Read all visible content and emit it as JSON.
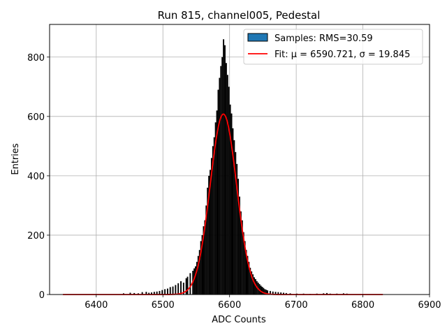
{
  "chart_data": {
    "type": "bar",
    "title": "Run 815, channel005, Pedestal",
    "xlabel": "ADC Counts",
    "ylabel": "Entries",
    "xlim": [
      6330,
      6900
    ],
    "ylim": [
      0,
      910
    ],
    "xticks": [
      "6400",
      "6500",
      "6600",
      "6700",
      "6800",
      "6900"
    ],
    "yticks": [
      "0",
      "200",
      "400",
      "600",
      "800"
    ],
    "grid": true,
    "legend_position": "top-right",
    "histogram": {
      "name": "Samples: RMS=30.59",
      "color": "#1f77b4",
      "bin_width": 2,
      "bins": [
        [
          6440,
          4
        ],
        [
          6450,
          6
        ],
        [
          6456,
          5
        ],
        [
          6462,
          4
        ],
        [
          6468,
          8
        ],
        [
          6474,
          9
        ],
        [
          6478,
          6
        ],
        [
          6482,
          7
        ],
        [
          6486,
          9
        ],
        [
          6490,
          10
        ],
        [
          6494,
          12
        ],
        [
          6498,
          15
        ],
        [
          6502,
          18
        ],
        [
          6506,
          20
        ],
        [
          6510,
          25
        ],
        [
          6514,
          27
        ],
        [
          6518,
          32
        ],
        [
          6522,
          38
        ],
        [
          6526,
          45
        ],
        [
          6530,
          40
        ],
        [
          6534,
          55
        ],
        [
          6536,
          60
        ],
        [
          6540,
          72
        ],
        [
          6544,
          80
        ],
        [
          6546,
          88
        ],
        [
          6548,
          95
        ],
        [
          6550,
          110
        ],
        [
          6552,
          130
        ],
        [
          6554,
          150
        ],
        [
          6556,
          180
        ],
        [
          6558,
          200
        ],
        [
          6560,
          230
        ],
        [
          6562,
          250
        ],
        [
          6564,
          300
        ],
        [
          6566,
          360
        ],
        [
          6568,
          400
        ],
        [
          6570,
          420
        ],
        [
          6572,
          460
        ],
        [
          6574,
          500
        ],
        [
          6576,
          530
        ],
        [
          6578,
          580
        ],
        [
          6580,
          620
        ],
        [
          6582,
          690
        ],
        [
          6584,
          730
        ],
        [
          6586,
          770
        ],
        [
          6588,
          800
        ],
        [
          6590,
          860
        ],
        [
          6592,
          840
        ],
        [
          6594,
          780
        ],
        [
          6596,
          740
        ],
        [
          6598,
          700
        ],
        [
          6600,
          640
        ],
        [
          6602,
          610
        ],
        [
          6604,
          560
        ],
        [
          6606,
          520
        ],
        [
          6608,
          480
        ],
        [
          6610,
          440
        ],
        [
          6612,
          390
        ],
        [
          6614,
          330
        ],
        [
          6616,
          280
        ],
        [
          6618,
          250
        ],
        [
          6620,
          210
        ],
        [
          6622,
          180
        ],
        [
          6624,
          150
        ],
        [
          6626,
          130
        ],
        [
          6628,
          110
        ],
        [
          6630,
          90
        ],
        [
          6632,
          78
        ],
        [
          6634,
          68
        ],
        [
          6636,
          58
        ],
        [
          6638,
          52
        ],
        [
          6640,
          45
        ],
        [
          6642,
          40
        ],
        [
          6644,
          35
        ],
        [
          6646,
          30
        ],
        [
          6648,
          26
        ],
        [
          6650,
          22
        ],
        [
          6652,
          18
        ],
        [
          6654,
          16
        ],
        [
          6656,
          14
        ],
        [
          6660,
          12
        ],
        [
          6664,
          10
        ],
        [
          6668,
          9
        ],
        [
          6672,
          8
        ],
        [
          6676,
          7
        ],
        [
          6680,
          6
        ],
        [
          6684,
          5
        ],
        [
          6690,
          4
        ],
        [
          6700,
          3
        ],
        [
          6710,
          3
        ],
        [
          6720,
          2
        ],
        [
          6730,
          3
        ],
        [
          6740,
          4
        ],
        [
          6745,
          5
        ],
        [
          6750,
          3
        ],
        [
          6760,
          3
        ],
        [
          6770,
          4
        ],
        [
          6775,
          3
        ]
      ]
    },
    "fit": {
      "name": "Fit: μ = 6590.721, σ = 19.845",
      "color": "#ff0000",
      "mu": 6590.721,
      "sigma": 19.845,
      "amplitude": 608,
      "range": [
        6350,
        6830
      ]
    }
  }
}
